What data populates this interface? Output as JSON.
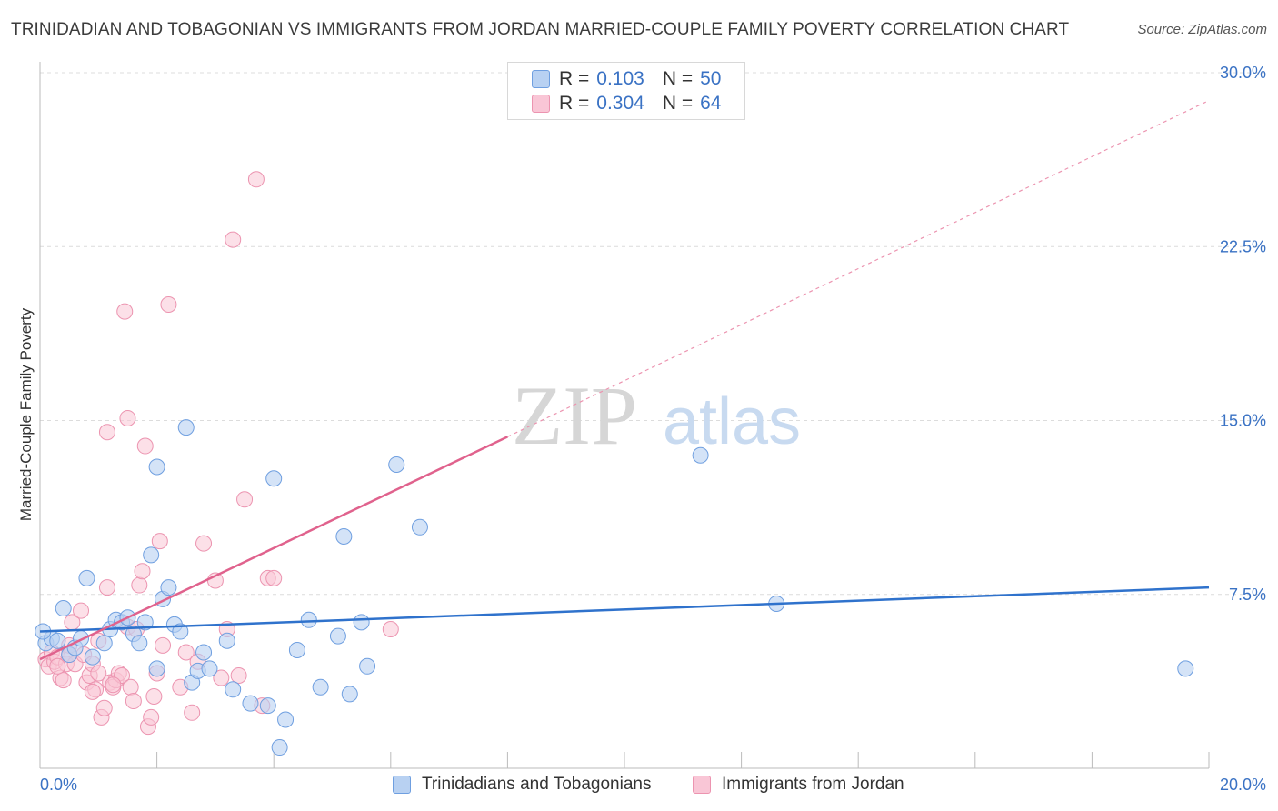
{
  "title": "TRINIDADIAN AND TOBAGONIAN VS IMMIGRANTS FROM JORDAN MARRIED-COUPLE FAMILY POVERTY CORRELATION CHART",
  "source": "Source: ZipAtlas.com",
  "watermark": {
    "zip": "ZIP",
    "atlas": "atlas"
  },
  "legend": {
    "rows": [
      {
        "r_label": "R =",
        "r_value": "0.103",
        "n_label": "N =",
        "n_value": "50"
      },
      {
        "r_label": "R =",
        "r_value": "0.304",
        "n_label": "N =",
        "n_value": "64"
      }
    ]
  },
  "bottom_legend": {
    "series1": "Trinidadians and Tobagonians",
    "series2": "Immigrants from Jordan"
  },
  "chart_data": {
    "type": "scatter",
    "title": "TRINIDADIAN AND TOBAGONIAN VS IMMIGRANTS FROM JORDAN MARRIED-COUPLE FAMILY POVERTY CORRELATION CHART",
    "xlabel": "",
    "ylabel": "Married-Couple Family Poverty",
    "xlim": [
      0,
      20
    ],
    "ylim": [
      0,
      30
    ],
    "x_tick_labels": [
      "0.0%",
      "20.0%"
    ],
    "y_tick_labels": [
      "7.5%",
      "15.0%",
      "22.5%",
      "30.0%"
    ],
    "y_ticks": [
      7.5,
      15.0,
      22.5,
      30.0
    ],
    "colors": {
      "blue": "#6f9fe0",
      "blue_fill": "#b8d1f2",
      "blue_line": "#2f72cc",
      "pink": "#ec94b0",
      "pink_fill": "#f9c6d6",
      "pink_line": "#e0628d",
      "axis_text": "#3a72c4"
    },
    "series": [
      {
        "name": "Trinidadians and Tobagonians",
        "R": 0.103,
        "N": 50,
        "trend": {
          "x": [
            0.0,
            20.0
          ],
          "y": [
            5.9,
            7.8
          ]
        },
        "points": [
          [
            0.1,
            5.4
          ],
          [
            0.2,
            5.6
          ],
          [
            0.3,
            5.5
          ],
          [
            0.4,
            6.9
          ],
          [
            0.5,
            4.9
          ],
          [
            0.6,
            5.2
          ],
          [
            0.7,
            5.6
          ],
          [
            0.8,
            8.2
          ],
          [
            0.9,
            4.8
          ],
          [
            1.1,
            5.4
          ],
          [
            1.2,
            6.0
          ],
          [
            1.3,
            6.4
          ],
          [
            1.4,
            6.3
          ],
          [
            1.5,
            6.5
          ],
          [
            1.6,
            5.8
          ],
          [
            1.7,
            5.4
          ],
          [
            1.8,
            6.3
          ],
          [
            1.9,
            9.2
          ],
          [
            2.0,
            4.3
          ],
          [
            2.0,
            13.0
          ],
          [
            2.1,
            7.3
          ],
          [
            2.2,
            7.8
          ],
          [
            2.3,
            6.2
          ],
          [
            2.4,
            5.9
          ],
          [
            2.5,
            14.7
          ],
          [
            2.6,
            3.7
          ],
          [
            2.7,
            4.2
          ],
          [
            2.8,
            5.0
          ],
          [
            2.9,
            4.3
          ],
          [
            3.2,
            5.5
          ],
          [
            3.3,
            3.4
          ],
          [
            3.6,
            2.8
          ],
          [
            3.9,
            2.7
          ],
          [
            4.0,
            12.5
          ],
          [
            4.1,
            0.9
          ],
          [
            4.2,
            2.1
          ],
          [
            4.4,
            5.1
          ],
          [
            4.6,
            6.4
          ],
          [
            4.8,
            3.5
          ],
          [
            5.1,
            5.7
          ],
          [
            5.2,
            10.0
          ],
          [
            5.3,
            3.2
          ],
          [
            5.5,
            6.3
          ],
          [
            5.6,
            4.4
          ],
          [
            6.1,
            13.1
          ],
          [
            6.5,
            10.4
          ],
          [
            11.3,
            13.5
          ],
          [
            12.6,
            7.1
          ],
          [
            19.6,
            4.3
          ],
          [
            0.05,
            5.9
          ]
        ]
      },
      {
        "name": "Immigrants from Jordan",
        "R": 0.304,
        "N": 64,
        "trend": {
          "x": [
            0.0,
            8.0
          ],
          "y": [
            4.7,
            14.3
          ],
          "x_dashed": [
            8.0,
            20.0
          ],
          "y_dashed": [
            14.3,
            28.8
          ]
        },
        "points": [
          [
            0.1,
            4.7
          ],
          [
            0.15,
            4.4
          ],
          [
            0.2,
            5.0
          ],
          [
            0.25,
            4.6
          ],
          [
            0.3,
            4.8
          ],
          [
            0.35,
            3.9
          ],
          [
            0.4,
            3.8
          ],
          [
            0.45,
            4.5
          ],
          [
            0.5,
            5.3
          ],
          [
            0.55,
            6.3
          ],
          [
            0.6,
            4.5
          ],
          [
            0.7,
            6.8
          ],
          [
            0.75,
            4.9
          ],
          [
            0.8,
            3.7
          ],
          [
            0.85,
            4.0
          ],
          [
            0.9,
            4.5
          ],
          [
            0.95,
            3.4
          ],
          [
            1.0,
            4.1
          ],
          [
            1.05,
            2.2
          ],
          [
            1.1,
            2.6
          ],
          [
            1.15,
            7.8
          ],
          [
            1.2,
            3.7
          ],
          [
            1.25,
            3.5
          ],
          [
            1.3,
            3.8
          ],
          [
            1.35,
            4.1
          ],
          [
            1.4,
            4.0
          ],
          [
            1.45,
            19.7
          ],
          [
            1.5,
            6.1
          ],
          [
            1.55,
            3.5
          ],
          [
            1.6,
            2.9
          ],
          [
            1.65,
            6.0
          ],
          [
            1.7,
            7.9
          ],
          [
            1.75,
            8.5
          ],
          [
            1.8,
            13.9
          ],
          [
            1.85,
            1.8
          ],
          [
            1.9,
            2.2
          ],
          [
            1.95,
            3.1
          ],
          [
            2.0,
            4.1
          ],
          [
            2.05,
            9.8
          ],
          [
            2.1,
            5.3
          ],
          [
            2.2,
            20.0
          ],
          [
            2.4,
            3.5
          ],
          [
            2.5,
            5.0
          ],
          [
            2.6,
            2.4
          ],
          [
            2.7,
            4.6
          ],
          [
            2.8,
            9.7
          ],
          [
            3.0,
            8.1
          ],
          [
            3.1,
            3.9
          ],
          [
            3.2,
            6.0
          ],
          [
            3.3,
            22.8
          ],
          [
            3.4,
            4.0
          ],
          [
            3.5,
            11.6
          ],
          [
            3.7,
            25.4
          ],
          [
            3.8,
            2.7
          ],
          [
            3.9,
            8.2
          ],
          [
            4.0,
            8.2
          ],
          [
            6.0,
            6.0
          ],
          [
            1.15,
            14.5
          ],
          [
            1.5,
            15.1
          ],
          [
            0.3,
            4.4
          ],
          [
            0.5,
            4.9
          ],
          [
            0.9,
            3.3
          ],
          [
            1.25,
            3.6
          ],
          [
            1.0,
            5.5
          ]
        ]
      }
    ]
  }
}
